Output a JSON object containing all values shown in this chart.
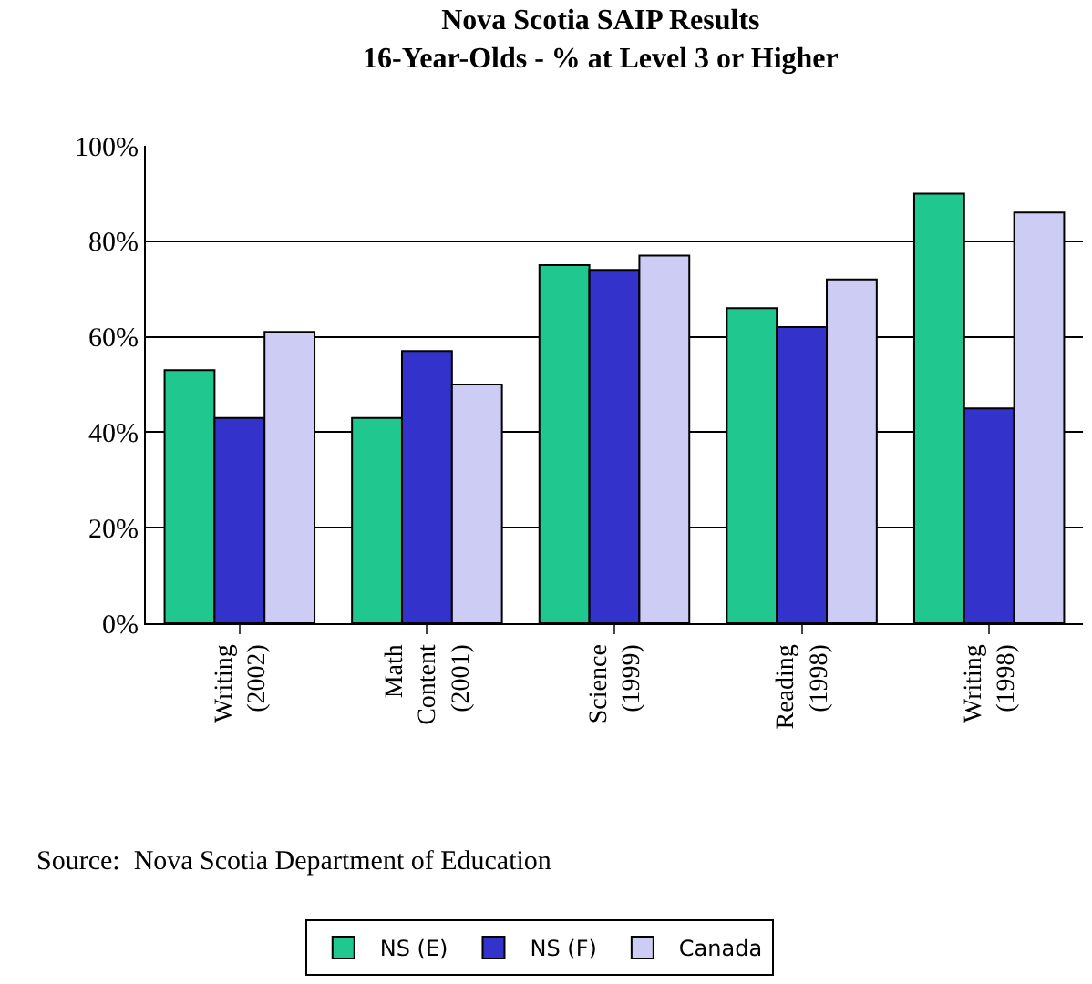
{
  "chart_data": {
    "type": "bar",
    "title": "Nova Scotia SAIP Results\n16-Year-Olds - % at Level 3 or Higher",
    "categories": [
      "Writing\n(2002)",
      "Math\nContent\n(2001)",
      "Science\n(1999)",
      "Reading\n(1998)",
      "Writing\n(1998)"
    ],
    "series": [
      {
        "name": "NS (E)",
        "color": "#20c890",
        "values": [
          53,
          43,
          75,
          66,
          90
        ]
      },
      {
        "name": "NS (F)",
        "color": "#3333cc",
        "values": [
          43,
          57,
          74,
          62,
          45
        ]
      },
      {
        "name": "Canada",
        "color": "#ccccf5",
        "values": [
          61,
          50,
          77,
          72,
          86
        ]
      }
    ],
    "ylim": [
      0,
      100
    ],
    "yticks": [
      {
        "value": 0,
        "label": "0%"
      },
      {
        "value": 20,
        "label": "20%"
      },
      {
        "value": 40,
        "label": "40%"
      },
      {
        "value": 60,
        "label": "60%"
      },
      {
        "value": 80,
        "label": "80%"
      },
      {
        "value": 100,
        "label": "100%"
      }
    ],
    "grid": "y",
    "legend": "bottom",
    "annotations": [
      "Source:  Nova Scotia Department of Education"
    ]
  }
}
